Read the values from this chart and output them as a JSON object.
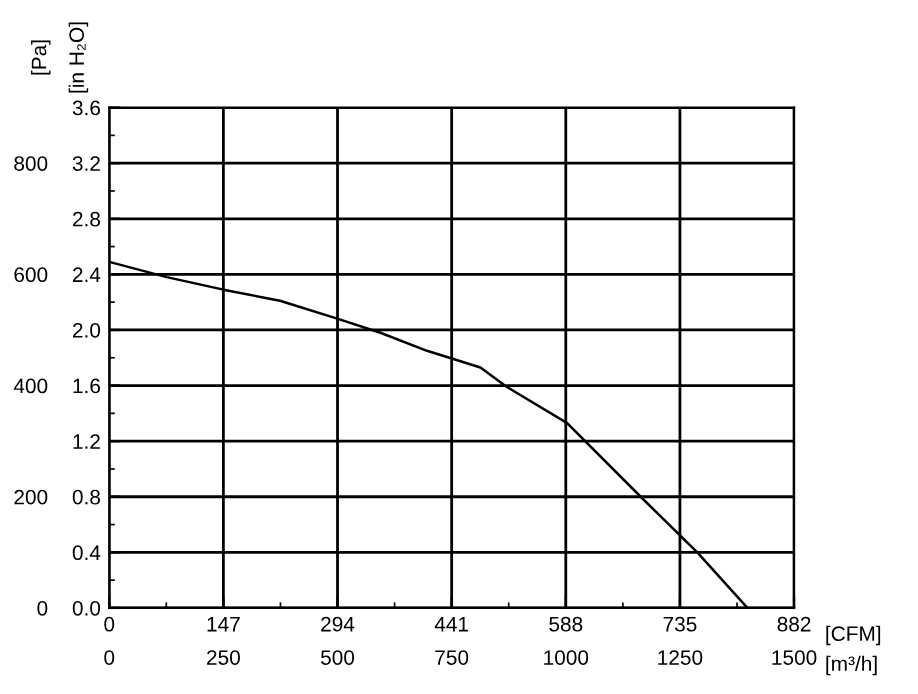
{
  "chart_data": {
    "type": "line",
    "xlabel": "[m³/h]",
    "x2label": "[CFM]",
    "ylabel": "[in H₂O]",
    "y2label": "[Pa]",
    "xlim": [
      0,
      1500
    ],
    "xticks": [
      0,
      250,
      500,
      750,
      1000,
      1250,
      1500
    ],
    "x2lim": [
      0,
      882
    ],
    "x2ticks": [
      0,
      147,
      294,
      441,
      588,
      735,
      882
    ],
    "ylim": [
      0,
      3.6
    ],
    "yticks": [
      {
        "value": 0,
        "label": "0.0"
      },
      0.4,
      0.8,
      1.2,
      1.6,
      {
        "value": 2,
        "label": "2.0"
      },
      2.4,
      2.8,
      3.2,
      3.6
    ],
    "y2lim": [
      0,
      900
    ],
    "y2ticks": [
      0,
      200,
      400,
      600,
      800
    ],
    "grid": true,
    "marker": "none",
    "line_style": "solid",
    "series": [
      {
        "color": "#000000",
        "x": [
          0,
          126,
          250,
          374,
          501,
          594,
          696,
          813,
          871,
          1003,
          1164,
          1288,
          1398
        ],
        "values": [
          2.49,
          2.38,
          2.29,
          2.21,
          2.08,
          1.98,
          1.85,
          1.73,
          1.59,
          1.33,
          0.8,
          0.4,
          0.0
        ]
      }
    ]
  }
}
